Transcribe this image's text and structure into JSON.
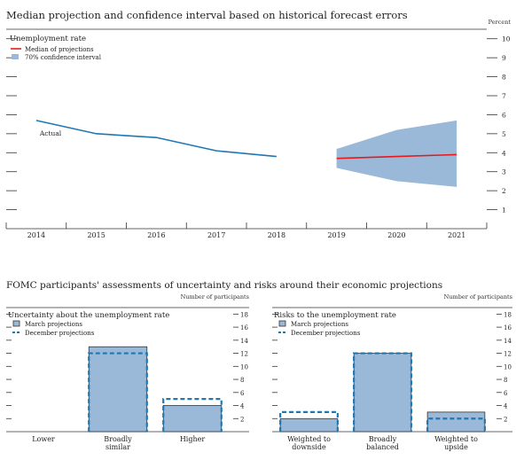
{
  "top_figure": {
    "title": "Median projection and confidence interval based on historical forecast errors",
    "unit_label": "Percent"
  },
  "bottom_figure": {
    "title": "FOMC participants' assessments of uncertainty and risks around their economic projections"
  },
  "colors": {
    "actual_line": "#1f77b4",
    "median_line": "#e41a1c",
    "band_fill": "#9ab8d8",
    "bar_fill": "#9ab8d8",
    "bar_stroke": "#333333",
    "december_dash": "#1f77b4",
    "axis": "#333333"
  },
  "chart_data": [
    {
      "type": "line",
      "title": "Unemployment rate",
      "ylabel": "Percent",
      "ylim": [
        0,
        10.5
      ],
      "yticks": [
        1,
        2,
        3,
        4,
        5,
        6,
        7,
        8,
        9,
        10
      ],
      "xlim": [
        2013.5,
        2021.5
      ],
      "x_ticks": [
        "2014",
        "2015",
        "2016",
        "2017",
        "2018",
        "2019",
        "2020",
        "2021"
      ],
      "series": [
        {
          "name": "Actual",
          "x": [
            2014,
            2015,
            2016,
            2017,
            2018
          ],
          "values": [
            5.7,
            5.0,
            4.8,
            4.1,
            3.8
          ]
        },
        {
          "name": "Median of projections",
          "x": [
            2019,
            2020,
            2021
          ],
          "values": [
            3.7,
            3.8,
            3.9
          ]
        }
      ],
      "band": {
        "name": "70% confidence interval",
        "x": [
          2019,
          2020,
          2021
        ],
        "lower": [
          3.2,
          2.5,
          2.2
        ],
        "upper": [
          4.2,
          5.2,
          5.7
        ]
      },
      "legend": [
        "Median of projections",
        "70% confidence interval"
      ],
      "legend_position": "top-left",
      "annotation": "Actual"
    },
    {
      "type": "bar",
      "title": "Uncertainty about the unemployment rate",
      "ylabel": "Number of participants",
      "ylim": [
        0,
        19
      ],
      "yticks": [
        2,
        4,
        6,
        8,
        10,
        12,
        14,
        16,
        18
      ],
      "categories": [
        [
          "Lower"
        ],
        [
          "Broadly",
          "similar"
        ],
        [
          "Higher"
        ]
      ],
      "series": [
        {
          "name": "March projections",
          "values": [
            0,
            13,
            4
          ]
        },
        {
          "name": "December projections",
          "values": [
            0,
            12,
            5
          ]
        }
      ],
      "legend_position": "top-left"
    },
    {
      "type": "bar",
      "title": "Risks to the unemployment rate",
      "ylabel": "Number of participants",
      "ylim": [
        0,
        19
      ],
      "yticks": [
        2,
        4,
        6,
        8,
        10,
        12,
        14,
        16,
        18
      ],
      "categories": [
        [
          "Weighted to",
          "downside"
        ],
        [
          "Broadly",
          "balanced"
        ],
        [
          "Weighted to",
          "upside"
        ]
      ],
      "series": [
        {
          "name": "March projections",
          "values": [
            2,
            12,
            3
          ]
        },
        {
          "name": "December projections",
          "values": [
            3,
            12,
            2
          ]
        }
      ],
      "legend_position": "top-left"
    }
  ]
}
